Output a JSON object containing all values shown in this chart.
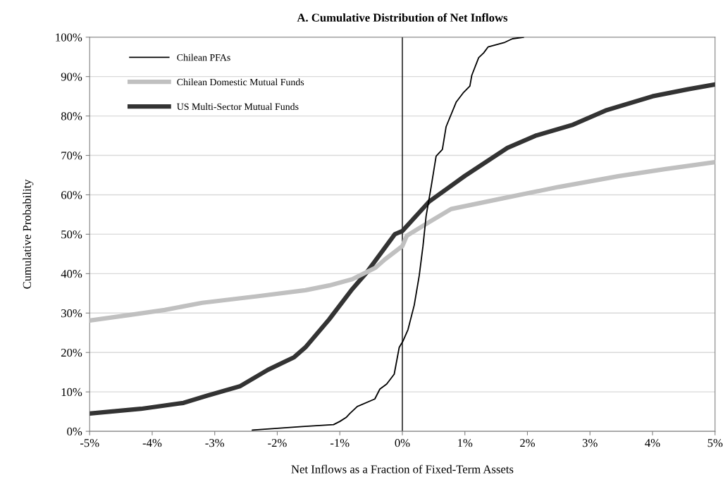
{
  "chart_data": {
    "type": "line",
    "title": "A. Cumulative Distribution of Net Inflows",
    "xlabel": "Net Inflows as a Fraction of Fixed-Term Assets",
    "ylabel": "Cumulative Probability",
    "xlim": [
      -5,
      5
    ],
    "ylim": [
      0,
      100
    ],
    "xticks": [
      {
        "value": -5,
        "label": "-5%"
      },
      {
        "value": -4,
        "label": "-4%"
      },
      {
        "value": -3,
        "label": "-3%"
      },
      {
        "value": -2,
        "label": "-2%"
      },
      {
        "value": -1,
        "label": "-1%"
      },
      {
        "value": 0,
        "label": "0%"
      },
      {
        "value": 1,
        "label": "1%"
      },
      {
        "value": 2,
        "label": "2%"
      },
      {
        "value": 3,
        "label": "3%"
      },
      {
        "value": 4,
        "label": "4%"
      },
      {
        "value": 5,
        "label": "5%"
      }
    ],
    "yticks": [
      {
        "value": 0,
        "label": "0%"
      },
      {
        "value": 10,
        "label": "10%"
      },
      {
        "value": 20,
        "label": "20%"
      },
      {
        "value": 30,
        "label": "30%"
      },
      {
        "value": 40,
        "label": "40%"
      },
      {
        "value": 50,
        "label": "50%"
      },
      {
        "value": 60,
        "label": "60%"
      },
      {
        "value": 70,
        "label": "70%"
      },
      {
        "value": 80,
        "label": "80%"
      },
      {
        "value": 90,
        "label": "90%"
      },
      {
        "value": 100,
        "label": "100%"
      }
    ],
    "grid": "y",
    "legend": "top left",
    "marker": "none",
    "line_style": "solid",
    "ref_lines": [
      {
        "axis": "x",
        "value": 0,
        "color": "#000000"
      }
    ],
    "series": [
      {
        "name": "Chilean PFAs",
        "color": "#000000",
        "x": [
          -2.4,
          -1.6,
          -1.1,
          -1.0,
          -0.9,
          -0.84,
          -0.72,
          -0.44,
          -0.36,
          -0.25,
          -0.13,
          -0.05,
          0.01,
          0.09,
          0.19,
          0.27,
          0.33,
          0.38,
          0.46,
          0.54,
          0.64,
          0.7,
          0.86,
          0.98,
          1.08,
          1.11,
          1.22,
          1.3,
          1.37,
          1.64,
          1.76,
          1.94
        ],
        "values": [
          0.3,
          1.2,
          1.7,
          2.5,
          3.5,
          4.5,
          6.3,
          8.2,
          10.7,
          12,
          14.5,
          21.3,
          22.9,
          25.8,
          32,
          39.5,
          47,
          54.6,
          62,
          69.8,
          71.5,
          77.3,
          83.5,
          86,
          87.6,
          90.3,
          94.8,
          96,
          97.5,
          98.7,
          99.6,
          100
        ]
      },
      {
        "name": "Chilean Domestic Mutual Funds",
        "color": "#c0c0c0",
        "x": [
          -5,
          -4.37,
          -3.8,
          -3.2,
          -2.3,
          -1.55,
          -1.17,
          -0.8,
          -0.43,
          -0.28,
          0,
          0.07,
          0.43,
          0.78,
          1.57,
          2.5,
          3.45,
          4.19,
          5
        ],
        "values": [
          28.1,
          29.5,
          30.8,
          32.6,
          34.3,
          35.8,
          37,
          38.6,
          41.5,
          43.6,
          47,
          49.6,
          53.1,
          56.4,
          59,
          62,
          64.7,
          66.5,
          68.3
        ]
      },
      {
        "name": "US Multi-Sector Mutual Funds",
        "color": "#333333",
        "x": [
          -5,
          -4.18,
          -3.5,
          -3.13,
          -2.6,
          -2.15,
          -1.73,
          -1.55,
          -1.17,
          -0.8,
          -0.57,
          -0.12,
          0,
          0.43,
          1.0,
          1.68,
          2.13,
          2.73,
          3.25,
          4.0,
          4.57,
          5
        ],
        "values": [
          4.5,
          5.7,
          7.2,
          9,
          11.4,
          15.6,
          18.8,
          21.3,
          28.4,
          36.1,
          40.3,
          50,
          50.8,
          58.3,
          64.8,
          71.9,
          75,
          77.8,
          81.4,
          85,
          86.8,
          88
        ]
      }
    ]
  }
}
